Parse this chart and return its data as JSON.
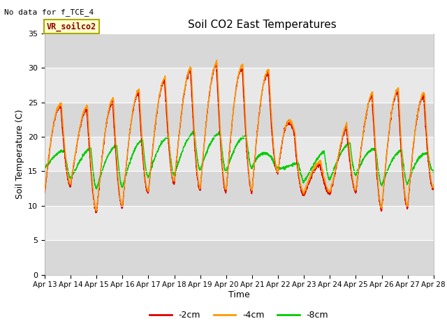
{
  "title": "Soil CO2 East Temperatures",
  "xlabel": "Time",
  "ylabel": "Soil Temperature (C)",
  "no_data_text": "No data for f_TCE_4",
  "legend_label": "VR_soilco2",
  "ylim": [
    0,
    35
  ],
  "yticks": [
    0,
    5,
    10,
    15,
    20,
    25,
    30,
    35
  ],
  "x_labels": [
    "Apr 13",
    "Apr 14",
    "Apr 15",
    "Apr 16",
    "Apr 17",
    "Apr 18",
    "Apr 19",
    "Apr 20",
    "Apr 21",
    "Apr 22",
    "Apr 23",
    "Apr 24",
    "Apr 25",
    "Apr 26",
    "Apr 27",
    "Apr 28"
  ],
  "line_colors": {
    "2cm": "#dd0000",
    "4cm": "#ff9900",
    "8cm": "#00cc00"
  },
  "line_labels": [
    "-2cm",
    "-4cm",
    "-8cm"
  ],
  "plot_bg_color": "#e8e8e8",
  "band_color": "#d0d0d0"
}
